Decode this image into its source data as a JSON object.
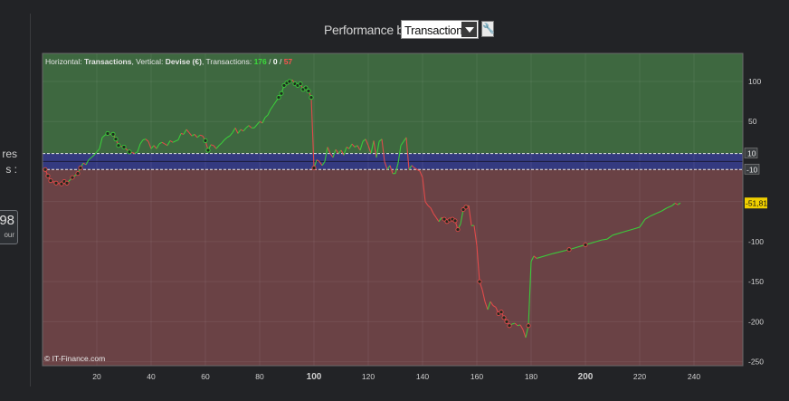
{
  "left_panel": {
    "fragment_top": "res",
    "fragment_bottom": "s :",
    "box_value": "98",
    "box_unit": "our"
  },
  "header": {
    "title": "Performance brute",
    "select_value": "Transactions",
    "wrench_icon": "wrench-icon"
  },
  "chart_data": {
    "type": "line",
    "info_prefix": "Horizontal: ",
    "info_h": "Transactions",
    "info_mid": ", Vertical: ",
    "info_v": "Devise (€)",
    "info_mid2": ", Transactions: ",
    "count_win": "176",
    "count_sep1": " / ",
    "count_zero": "0",
    "count_sep2": " / ",
    "count_loss": "57",
    "watermark": "© IT-Finance.com",
    "xlim": [
      0,
      258
    ],
    "ylim": [
      -255,
      135
    ],
    "x_ticks": [
      "20",
      "40",
      "60",
      "80",
      "100",
      "120",
      "140",
      "160",
      "180",
      "200",
      "220",
      "240"
    ],
    "y_ticks": [
      "100",
      "50",
      "-50",
      "-100",
      "-150",
      "-200",
      "-250"
    ],
    "y_tick_values": [
      100,
      50,
      -50,
      -100,
      -150,
      -200,
      -250
    ],
    "threshold_pos": "10",
    "threshold_neg": "-10",
    "threshold_pos_value": 10,
    "threshold_neg_value": -10,
    "last_value_label": "-51,81",
    "last_value": -51.81,
    "colors": {
      "profit_zone": "#3e6840",
      "loss_zone": "#6a4245",
      "neutral_band": "#343a80",
      "up_line": "#3bcb3b",
      "down_line": "#e04a4a",
      "marker": "#1f2a1f",
      "last_badge": "#f0d000"
    },
    "series": [
      {
        "values": [
          [
            1,
            -10
          ],
          [
            2,
            -18
          ],
          [
            3,
            -24
          ],
          [
            5,
            -27
          ],
          [
            7,
            -28
          ],
          [
            8,
            -25
          ],
          [
            9,
            -27
          ],
          [
            11,
            -20
          ],
          [
            13,
            -15
          ],
          [
            14,
            -8
          ],
          [
            15,
            -2
          ],
          [
            16,
            -4
          ],
          [
            17,
            2
          ],
          [
            18,
            5
          ],
          [
            19,
            8
          ],
          [
            20,
            12
          ],
          [
            21,
            16
          ],
          [
            22,
            30
          ],
          [
            23,
            33
          ],
          [
            24,
            35
          ],
          [
            25,
            34
          ],
          [
            26,
            34
          ],
          [
            27,
            28
          ],
          [
            28,
            20
          ],
          [
            30,
            18
          ],
          [
            32,
            12
          ],
          [
            34,
            10
          ],
          [
            35,
            12
          ],
          [
            36,
            22
          ],
          [
            37,
            27
          ],
          [
            38,
            28
          ],
          [
            39,
            25
          ],
          [
            40,
            16
          ],
          [
            41,
            20
          ],
          [
            42,
            16
          ],
          [
            43,
            22
          ],
          [
            44,
            24
          ],
          [
            45,
            22
          ],
          [
            46,
            20
          ],
          [
            47,
            26
          ],
          [
            48,
            24
          ],
          [
            50,
            27
          ],
          [
            51,
            35
          ],
          [
            52,
            34
          ],
          [
            53,
            40
          ],
          [
            54,
            36
          ],
          [
            55,
            32
          ],
          [
            56,
            34
          ],
          [
            57,
            30
          ],
          [
            58,
            33
          ],
          [
            59,
            32
          ],
          [
            60,
            26
          ],
          [
            61,
            14
          ],
          [
            62,
            21
          ],
          [
            63,
            20
          ],
          [
            64,
            16
          ],
          [
            65,
            20
          ],
          [
            66,
            23
          ],
          [
            67,
            27
          ],
          [
            68,
            30
          ],
          [
            69,
            32
          ],
          [
            70,
            36
          ],
          [
            71,
            42
          ],
          [
            72,
            35
          ],
          [
            73,
            40
          ],
          [
            74,
            38
          ],
          [
            75,
            42
          ],
          [
            76,
            45
          ],
          [
            77,
            42
          ],
          [
            78,
            42
          ],
          [
            79,
            46
          ],
          [
            80,
            50
          ],
          [
            81,
            48
          ],
          [
            82,
            55
          ],
          [
            83,
            58
          ],
          [
            84,
            65
          ],
          [
            85,
            70
          ],
          [
            86,
            75
          ],
          [
            87,
            80
          ],
          [
            88,
            85
          ],
          [
            89,
            95
          ],
          [
            90,
            98
          ],
          [
            91,
            100
          ],
          [
            92,
            102
          ],
          [
            93,
            97
          ],
          [
            94,
            95
          ],
          [
            95,
            97
          ],
          [
            96,
            90
          ],
          [
            97,
            92
          ],
          [
            98,
            88
          ],
          [
            99,
            80
          ],
          [
            100,
            -8
          ],
          [
            101,
            2
          ],
          [
            102,
            0
          ],
          [
            103,
            -5
          ],
          [
            104,
            0
          ],
          [
            105,
            18
          ],
          [
            106,
            10
          ],
          [
            107,
            5
          ],
          [
            108,
            15
          ],
          [
            109,
            10
          ],
          [
            110,
            14
          ],
          [
            111,
            8
          ],
          [
            112,
            18
          ],
          [
            113,
            16
          ],
          [
            114,
            22
          ],
          [
            115,
            18
          ],
          [
            116,
            20
          ],
          [
            117,
            14
          ],
          [
            118,
            25
          ],
          [
            119,
            28
          ],
          [
            120,
            20
          ],
          [
            121,
            10
          ],
          [
            122,
            26
          ],
          [
            123,
            5
          ],
          [
            124,
            25
          ],
          [
            125,
            28
          ],
          [
            126,
            0
          ],
          [
            127,
            -10
          ],
          [
            128,
            -5
          ],
          [
            129,
            -15
          ],
          [
            130,
            -15
          ],
          [
            131,
            -2
          ],
          [
            132,
            20
          ],
          [
            133,
            25
          ],
          [
            134,
            30
          ],
          [
            135,
            -10
          ],
          [
            136,
            -5
          ],
          [
            137,
            -8
          ],
          [
            138,
            -10
          ],
          [
            139,
            -12
          ],
          [
            140,
            -20
          ],
          [
            141,
            -50
          ],
          [
            142,
            -55
          ],
          [
            143,
            -58
          ],
          [
            144,
            -65
          ],
          [
            145,
            -70
          ],
          [
            146,
            -75
          ],
          [
            147,
            -70
          ],
          [
            148,
            -72
          ],
          [
            149,
            -75
          ],
          [
            150,
            -73
          ],
          [
            151,
            -72
          ],
          [
            152,
            -74
          ],
          [
            153,
            -85
          ],
          [
            154,
            -78
          ],
          [
            155,
            -60
          ],
          [
            156,
            -57
          ],
          [
            157,
            -55
          ],
          [
            158,
            -80
          ],
          [
            159,
            -80
          ],
          [
            160,
            -105
          ],
          [
            161,
            -150
          ],
          [
            162,
            -160
          ],
          [
            163,
            -175
          ],
          [
            164,
            -185
          ],
          [
            165,
            -175
          ],
          [
            166,
            -180
          ],
          [
            167,
            -182
          ],
          [
            168,
            -190
          ],
          [
            169,
            -188
          ],
          [
            170,
            -195
          ],
          [
            171,
            -200
          ],
          [
            172,
            -205
          ],
          [
            173,
            -203
          ],
          [
            174,
            -202
          ],
          [
            175,
            -205
          ],
          [
            176,
            -204
          ],
          [
            177,
            -210
          ],
          [
            178,
            -220
          ],
          [
            179,
            -205
          ],
          [
            180,
            -125
          ],
          [
            181,
            -118
          ],
          [
            182,
            -121
          ],
          [
            188,
            -115
          ],
          [
            194,
            -110
          ],
          [
            200,
            -104
          ],
          [
            206,
            -98
          ],
          [
            208,
            -97
          ],
          [
            210,
            -92
          ],
          [
            212,
            -90
          ],
          [
            214,
            -88
          ],
          [
            216,
            -86
          ],
          [
            218,
            -84
          ],
          [
            220,
            -82
          ],
          [
            222,
            -72
          ],
          [
            224,
            -68
          ],
          [
            226,
            -65
          ],
          [
            228,
            -62
          ],
          [
            230,
            -58
          ],
          [
            232,
            -55
          ],
          [
            233,
            -52
          ],
          [
            234,
            -54
          ],
          [
            235,
            -51.81
          ]
        ]
      }
    ]
  }
}
